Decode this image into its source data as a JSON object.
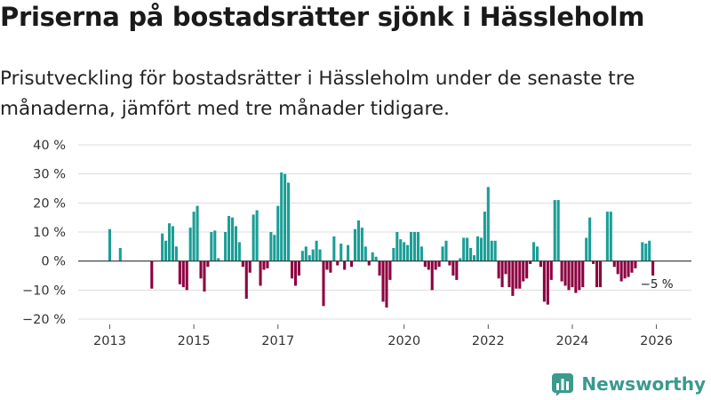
{
  "title": "Priserna på bostadsrätter sjönk i Hässleholm",
  "subtitle": "Prisutveckling för bostadsrätter i Hässleholm under de senaste tre månaderna, jämfört med tre månader tidigare.",
  "brand": "Newsworthy",
  "colors": {
    "positive": "#1a9e96",
    "negative": "#8c0040",
    "grid": "#dcdcdc",
    "text": "#333333"
  },
  "chart_data": {
    "type": "bar",
    "ylim": [
      -20,
      40
    ],
    "yticks": [
      -20,
      -10,
      0,
      10,
      20,
      30,
      40
    ],
    "ytick_labels": [
      "−20 %",
      "−10 %",
      "0 %",
      "10 %",
      "20 %",
      "30 %",
      "40 %"
    ],
    "xlim": [
      2012.25,
      2026.833
    ],
    "xticks": [
      2013,
      2015,
      2017,
      2020,
      2022,
      2024,
      2026
    ],
    "xtick_labels": [
      "2013",
      "2015",
      "2017",
      "2020",
      "2022",
      "2024",
      "2026"
    ],
    "last_label": "−5 %",
    "start": 2013.0,
    "step": 0.08333,
    "values": [
      11,
      0,
      0,
      4.5,
      0,
      0,
      0,
      0,
      0,
      0,
      0,
      0,
      -9.5,
      0,
      0,
      9.5,
      7,
      13,
      12,
      5,
      -8,
      -9,
      -10,
      11.5,
      17,
      19,
      -6,
      -10.5,
      -2,
      10,
      10.5,
      1,
      0,
      10,
      15.5,
      15,
      12,
      6.5,
      -2,
      -13,
      -4,
      16,
      17.5,
      -8.5,
      -3,
      -2.5,
      10,
      9,
      19,
      30.5,
      30,
      27,
      -6,
      -8.5,
      -5,
      3.5,
      5,
      2,
      4,
      7,
      4,
      -15.5,
      -3,
      -4,
      8.5,
      -1.5,
      6,
      -3,
      5.5,
      -2,
      11,
      14,
      11.5,
      5,
      -1.5,
      3,
      1.5,
      -5,
      -14,
      -16,
      -6.5,
      4.5,
      10,
      7.5,
      6.5,
      5.5,
      10,
      10,
      10,
      5,
      -2,
      -3,
      -10,
      -3,
      -2,
      5,
      7,
      -1.5,
      -5,
      -6.5,
      1,
      8,
      8,
      4.5,
      2,
      8.5,
      8,
      17,
      25.5,
      7,
      7,
      -6,
      -9,
      -4.5,
      -9,
      -12,
      -9.5,
      -9.5,
      -7,
      -6,
      -1,
      6.5,
      5,
      -2,
      -14,
      -15,
      -6.5,
      21,
      21,
      -7,
      -8.5,
      -10,
      -9,
      -11,
      -10,
      -9,
      8,
      15,
      -1,
      -9,
      -9,
      0,
      17,
      17,
      -2,
      -4.5,
      -7,
      -6,
      -5.5,
      -4,
      -2.5,
      0,
      6.5,
      6,
      7,
      -5
    ]
  }
}
